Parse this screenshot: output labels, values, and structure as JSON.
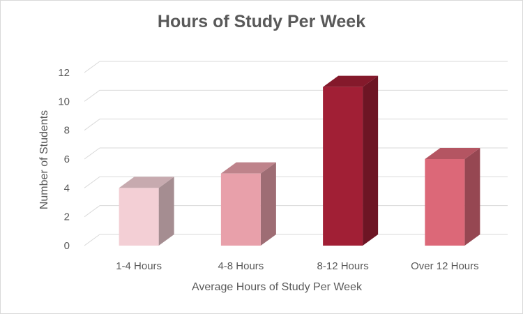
{
  "chart_data": {
    "type": "bar",
    "title": "Hours of Study Per Week",
    "xlabel": "Average Hours of Study Per Week",
    "ylabel": "Number of Students",
    "categories": [
      "1-4 Hours",
      "4-8 Hours",
      "8-12 Hours",
      "Over 12 Hours"
    ],
    "values": [
      4,
      5,
      11,
      6
    ],
    "ylim": [
      0,
      12
    ],
    "yticks": [
      0,
      2,
      4,
      6,
      8,
      10,
      12
    ],
    "grid": true,
    "legend": "none",
    "style": "3d-column",
    "bar_colors": [
      "#f3cfd5",
      "#e8a0aa",
      "#a11f35",
      "#dc6878"
    ],
    "grid_color": "#d9d9d9",
    "text_color": "#595959"
  }
}
